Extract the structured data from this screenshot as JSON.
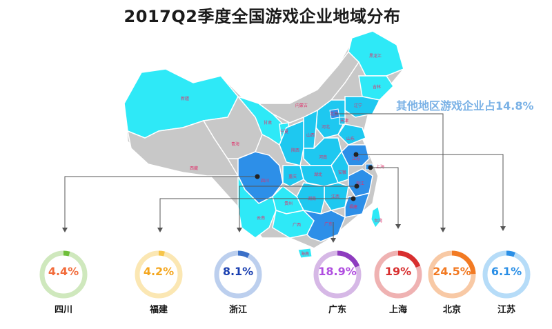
{
  "title": "2017Q2季度全国游戏企业地域分布",
  "other_note": "其他地区游戏企业占14.8%",
  "colors": {
    "top_tier": "#2d8fe8",
    "mid_tier": "#1ec8f0",
    "low_tier": "#2ee9f7",
    "none_tier": "#c8c8c8",
    "label": "#e0306a"
  },
  "map": {
    "provinces": [
      {
        "name": "黑龙江",
        "tier": "low_tier"
      },
      {
        "name": "吉林",
        "tier": "low_tier"
      },
      {
        "name": "辽宁",
        "tier": "mid_tier"
      },
      {
        "name": "内蒙古",
        "tier": "none_tier"
      },
      {
        "name": "新疆",
        "tier": "low_tier"
      },
      {
        "name": "西藏",
        "tier": "none_tier"
      },
      {
        "name": "青海",
        "tier": "none_tier"
      },
      {
        "name": "甘肃",
        "tier": "low_tier"
      },
      {
        "name": "宁夏",
        "tier": "low_tier"
      },
      {
        "name": "陕西",
        "tier": "mid_tier"
      },
      {
        "name": "山西",
        "tier": "mid_tier"
      },
      {
        "name": "河北",
        "tier": "mid_tier"
      },
      {
        "name": "北京",
        "tier": "top_tier"
      },
      {
        "name": "天津",
        "tier": "mid_tier"
      },
      {
        "name": "山东",
        "tier": "mid_tier"
      },
      {
        "name": "河南",
        "tier": "mid_tier"
      },
      {
        "name": "江苏",
        "tier": "top_tier"
      },
      {
        "name": "安徽",
        "tier": "mid_tier"
      },
      {
        "name": "上海",
        "tier": "top_tier"
      },
      {
        "name": "四川",
        "tier": "top_tier"
      },
      {
        "name": "重庆",
        "tier": "mid_tier"
      },
      {
        "name": "湖北",
        "tier": "mid_tier"
      },
      {
        "name": "浙江",
        "tier": "top_tier"
      },
      {
        "name": "江西",
        "tier": "mid_tier"
      },
      {
        "name": "湖南",
        "tier": "mid_tier"
      },
      {
        "name": "福建",
        "tier": "top_tier"
      },
      {
        "name": "贵州",
        "tier": "low_tier"
      },
      {
        "name": "云南",
        "tier": "low_tier"
      },
      {
        "name": "广西",
        "tier": "low_tier"
      },
      {
        "name": "广东",
        "tier": "top_tier"
      },
      {
        "name": "台湾",
        "tier": "low_tier"
      },
      {
        "name": "海南",
        "tier": "low_tier"
      }
    ]
  },
  "rings": [
    {
      "name": "四川",
      "value_text": "4.4%",
      "value": 4.4,
      "color": "#6fbf3a",
      "track": "#cfe8bd",
      "text_color": "#f26b3a"
    },
    {
      "name": "福建",
      "value_text": "4.2%",
      "value": 4.2,
      "color": "#f7c54a",
      "track": "#fbe7b3",
      "text_color": "#f4a61e"
    },
    {
      "name": "浙江",
      "value_text": "8.1%",
      "value": 8.1,
      "color": "#3a6fc7",
      "track": "#bccfee",
      "text_color": "#1a3fb0"
    },
    {
      "name": "广东",
      "value_text": "18.9%",
      "value": 18.9,
      "color": "#8e3cbf",
      "track": "#d6b8e6",
      "text_color": "#b04ee0"
    },
    {
      "name": "上海",
      "value_text": "19%",
      "value": 19,
      "color": "#d82f2f",
      "track": "#efb2b2",
      "text_color": "#d82f2f"
    },
    {
      "name": "北京",
      "value_text": "24.5%",
      "value": 24.5,
      "color": "#f27a23",
      "track": "#f8c9a5",
      "text_color": "#f27a23"
    },
    {
      "name": "江苏",
      "value_text": "6.1%",
      "value": 6.1,
      "color": "#2b8fe6",
      "track": "#b6dcf8",
      "text_color": "#2b8fe6"
    }
  ]
}
